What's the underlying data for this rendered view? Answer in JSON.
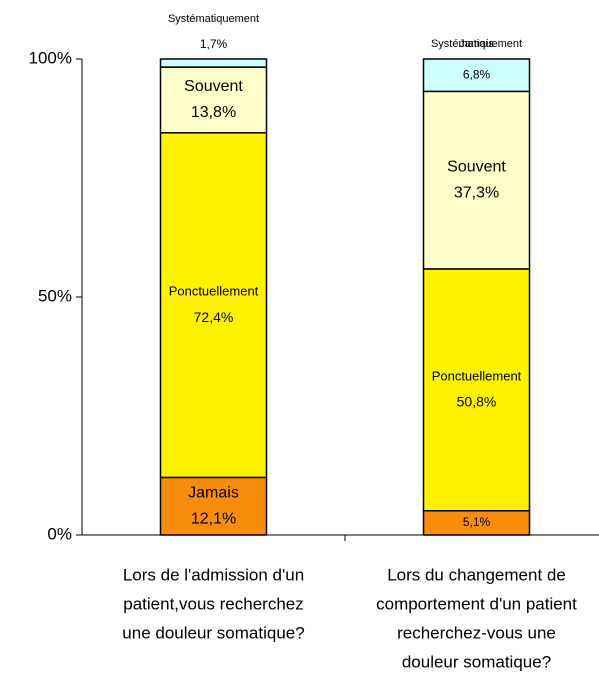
{
  "chart_data": {
    "type": "stacked_bar",
    "categories": [
      [
        "Lors de l'admission d'un",
        "patient,vous recherchez",
        "une douleur somatique?"
      ],
      [
        "Lors du changement de",
        "comportement d'un patient",
        "recherchez-vous une",
        "douleur somatique?"
      ]
    ],
    "series": [
      {
        "name": "Jamais",
        "color": "#f98c0c",
        "values": [
          12.1,
          5.1
        ],
        "value_labels": [
          "12,1%",
          "5,1%"
        ]
      },
      {
        "name": "Ponctuellement",
        "color": "#fff200",
        "values": [
          72.4,
          50.8
        ],
        "value_labels": [
          "72,4%",
          "50,8%"
        ]
      },
      {
        "name": "Souvent",
        "color": "#ffffcc",
        "values": [
          13.8,
          37.3
        ],
        "value_labels": [
          "13,8%",
          "37,3%"
        ]
      },
      {
        "name": "Systématiquement",
        "color": "#ccffff",
        "values": [
          1.7,
          6.8
        ],
        "value_labels": [
          "1,7%",
          "6,8%"
        ]
      }
    ],
    "ylim": [
      0,
      100
    ],
    "yticks": [
      {
        "value": 0,
        "label": "0%"
      },
      {
        "value": 50,
        "label": "50%"
      },
      {
        "value": 100,
        "label": "100%"
      }
    ]
  }
}
